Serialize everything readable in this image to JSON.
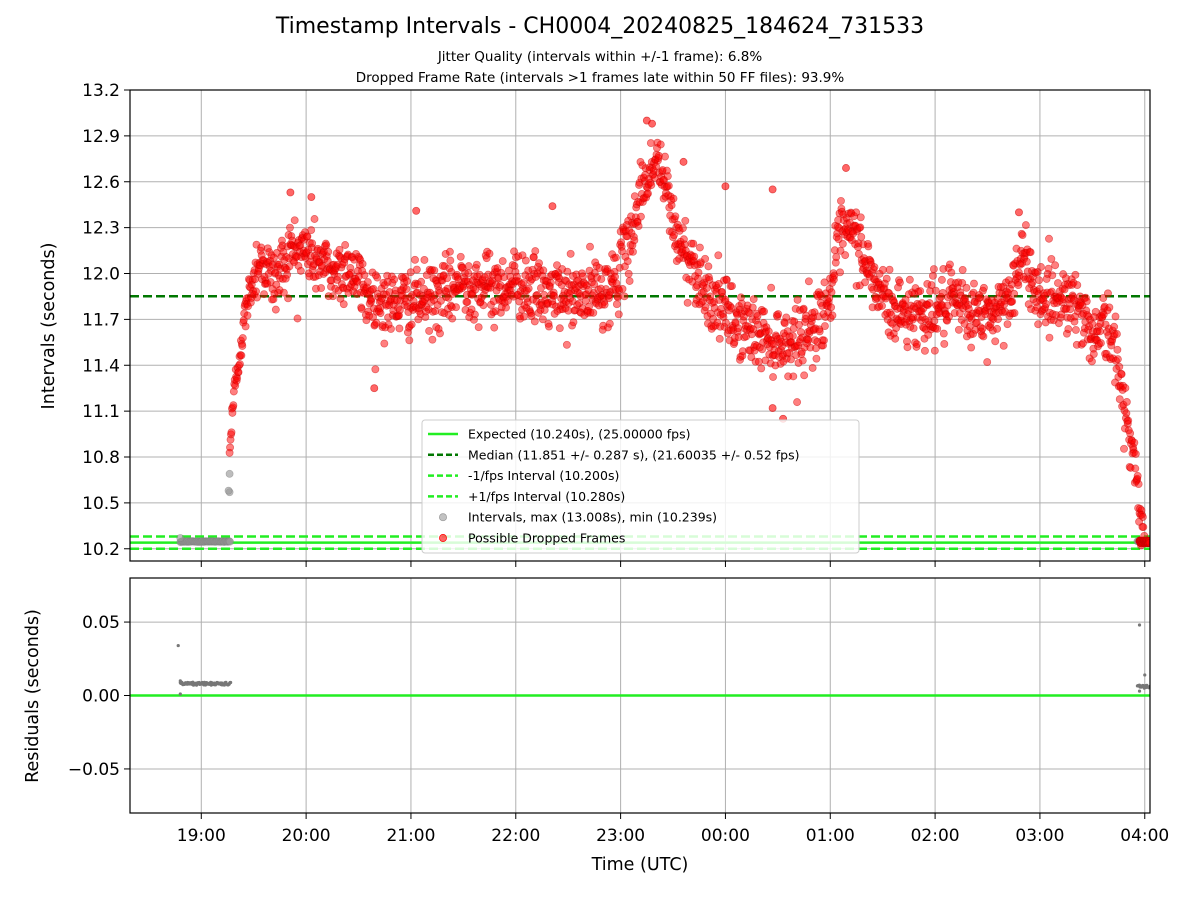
{
  "chart_data": {
    "title": "Timestamp Intervals - CH0004_20240825_184624_731533",
    "subtitles": [
      "Jitter Quality (intervals within +/-1 frame): 6.8%",
      "Dropped Frame Rate (intervals >1 frames late within 50 FF files): 93.9%"
    ],
    "xlabel": "Time (UTC)",
    "x_ticks": [
      "19:00",
      "20:00",
      "21:00",
      "22:00",
      "23:00",
      "00:00",
      "01:00",
      "02:00",
      "03:00",
      "04:00"
    ],
    "x_range_hours": [
      18.32,
      28.05
    ],
    "panels": [
      {
        "type": "scatter",
        "ylabel": "Intervals (seconds)",
        "ylim": [
          10.12,
          13.2
        ],
        "y_ticks": [
          "10.2",
          "10.5",
          "10.8",
          "11.1",
          "11.4",
          "11.7",
          "12.0",
          "12.3",
          "12.6",
          "12.9",
          "13.2"
        ],
        "grid": true,
        "legend_position": "lower center",
        "legend": [
          "Expected (10.240s), (25.00000 fps)",
          "Median (11.851 +/- 0.287 s), (21.60035 +/- 0.52 fps)",
          "-1/fps Interval (10.200s)",
          "+1/fps Interval (10.280s)",
          "Intervals, max (13.008s), min (10.239s)",
          "Possible Dropped Frames"
        ],
        "reference_lines": [
          {
            "name": "Expected",
            "y": 10.24,
            "color": "#22ee22",
            "style": "solid"
          },
          {
            "name": "Median",
            "y": 11.851,
            "color": "#007700",
            "style": "dashed"
          },
          {
            "name": "-1/fps Interval",
            "y": 10.2,
            "color": "#22ee22",
            "style": "dashed"
          },
          {
            "name": "+1/fps Interval",
            "y": 10.28,
            "color": "#22ee22",
            "style": "dashed"
          }
        ],
        "normal_intervals": {
          "color": "#999999",
          "segments": [
            {
              "x_start": 18.8,
              "x_end": 19.28,
              "y": 10.247
            },
            {
              "x_start": 27.93,
              "x_end": 28.05,
              "y": 10.247
            }
          ],
          "points": [
            {
              "x": 18.8,
              "y": 10.27
            },
            {
              "x": 19.27,
              "y": 10.57
            },
            {
              "x": 19.26,
              "y": 10.58
            },
            {
              "x": 19.27,
              "y": 10.69
            }
          ]
        },
        "dropped_frames": {
          "color": "#ff0000",
          "trend": [
            {
              "x": 19.27,
              "y": 10.85
            },
            {
              "x": 19.32,
              "y": 11.25
            },
            {
              "x": 19.38,
              "y": 11.55
            },
            {
              "x": 19.45,
              "y": 11.85
            },
            {
              "x": 19.55,
              "y": 12.1
            },
            {
              "x": 19.7,
              "y": 11.95
            },
            {
              "x": 19.85,
              "y": 12.15
            },
            {
              "x": 20.0,
              "y": 12.15
            },
            {
              "x": 20.25,
              "y": 12.0
            },
            {
              "x": 20.4,
              "y": 12.05
            },
            {
              "x": 20.6,
              "y": 11.85
            },
            {
              "x": 20.8,
              "y": 11.8
            },
            {
              "x": 21.0,
              "y": 11.82
            },
            {
              "x": 21.3,
              "y": 11.85
            },
            {
              "x": 21.5,
              "y": 11.95
            },
            {
              "x": 21.8,
              "y": 11.9
            },
            {
              "x": 22.0,
              "y": 11.95
            },
            {
              "x": 22.3,
              "y": 11.85
            },
            {
              "x": 22.6,
              "y": 11.85
            },
            {
              "x": 22.9,
              "y": 11.9
            },
            {
              "x": 23.05,
              "y": 12.1
            },
            {
              "x": 23.2,
              "y": 12.55
            },
            {
              "x": 23.35,
              "y": 12.75
            },
            {
              "x": 23.45,
              "y": 12.5
            },
            {
              "x": 23.55,
              "y": 12.2
            },
            {
              "x": 23.7,
              "y": 12.05
            },
            {
              "x": 23.85,
              "y": 11.85
            },
            {
              "x": 24.05,
              "y": 11.7
            },
            {
              "x": 24.3,
              "y": 11.6
            },
            {
              "x": 24.6,
              "y": 11.55
            },
            {
              "x": 24.85,
              "y": 11.65
            },
            {
              "x": 25.0,
              "y": 11.85
            },
            {
              "x": 25.1,
              "y": 12.25
            },
            {
              "x": 25.25,
              "y": 12.25
            },
            {
              "x": 25.4,
              "y": 11.95
            },
            {
              "x": 25.6,
              "y": 11.75
            },
            {
              "x": 25.9,
              "y": 11.75
            },
            {
              "x": 26.2,
              "y": 11.8
            },
            {
              "x": 26.5,
              "y": 11.7
            },
            {
              "x": 26.7,
              "y": 11.85
            },
            {
              "x": 26.85,
              "y": 12.1
            },
            {
              "x": 27.0,
              "y": 11.85
            },
            {
              "x": 27.3,
              "y": 11.85
            },
            {
              "x": 27.5,
              "y": 11.6
            },
            {
              "x": 27.6,
              "y": 11.7
            },
            {
              "x": 27.7,
              "y": 11.55
            },
            {
              "x": 27.8,
              "y": 11.15
            },
            {
              "x": 27.9,
              "y": 10.8
            },
            {
              "x": 27.96,
              "y": 10.4
            },
            {
              "x": 28.0,
              "y": 10.27
            }
          ],
          "outliers": [
            {
              "x": 23.25,
              "y": 13.0
            },
            {
              "x": 23.3,
              "y": 12.98
            },
            {
              "x": 23.6,
              "y": 12.73
            },
            {
              "x": 24.0,
              "y": 12.57
            },
            {
              "x": 24.45,
              "y": 12.55
            },
            {
              "x": 25.15,
              "y": 12.69
            },
            {
              "x": 20.65,
              "y": 11.25
            },
            {
              "x": 24.55,
              "y": 11.05
            },
            {
              "x": 24.45,
              "y": 11.12
            },
            {
              "x": 19.85,
              "y": 12.53
            },
            {
              "x": 20.05,
              "y": 12.5
            },
            {
              "x": 22.35,
              "y": 12.44
            },
            {
              "x": 21.05,
              "y": 12.41
            },
            {
              "x": 26.8,
              "y": 12.4
            }
          ]
        }
      },
      {
        "type": "scatter",
        "ylabel": "Residuals (seconds)",
        "ylim": [
          -0.08,
          0.08
        ],
        "y_ticks": [
          "0.05",
          "0.00",
          "−0.05"
        ],
        "grid": true,
        "zero_line_color": "#22ee22",
        "points_color": "#777777",
        "segments": [
          {
            "x_start": 18.8,
            "x_end": 19.28,
            "y": 0.008
          },
          {
            "x_start": 27.93,
            "x_end": 28.05,
            "y": 0.006
          }
        ],
        "points": [
          {
            "x": 18.78,
            "y": 0.034
          },
          {
            "x": 18.8,
            "y": 0.01
          },
          {
            "x": 18.8,
            "y": 0.001
          },
          {
            "x": 27.95,
            "y": 0.048
          },
          {
            "x": 28.0,
            "y": 0.014
          },
          {
            "x": 27.95,
            "y": 0.003
          }
        ]
      }
    ]
  }
}
